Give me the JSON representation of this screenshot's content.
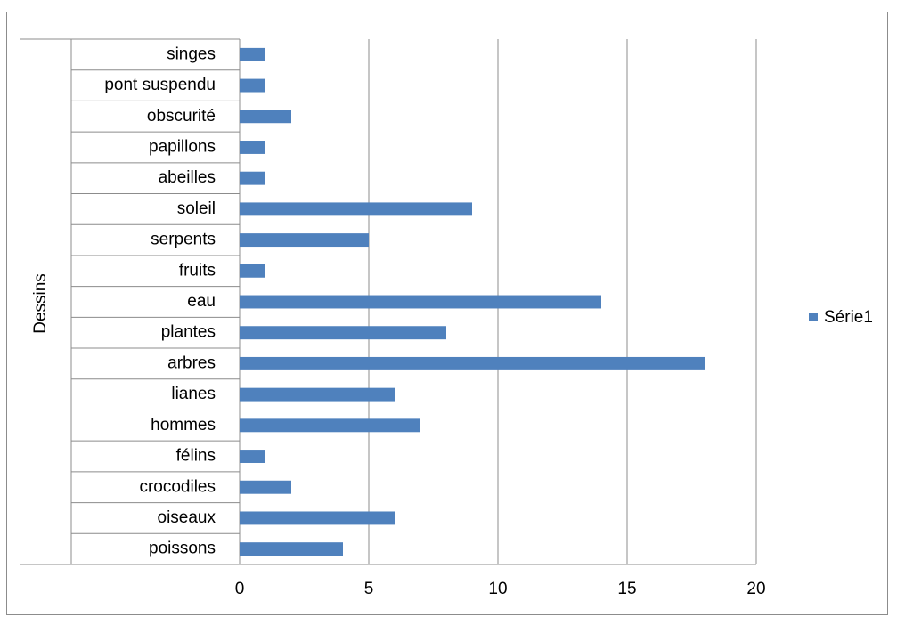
{
  "chart_data": {
    "type": "bar",
    "orientation": "horizontal",
    "title": "",
    "xlabel": "",
    "ylabel": "Dessins",
    "categories": [
      "poissons",
      "oiseaux",
      "crocodiles",
      "félins",
      "hommes",
      "lianes",
      "arbres",
      "plantes",
      "eau",
      "fruits",
      "serpents",
      "soleil",
      "abeilles",
      "papillons",
      "obscurité",
      "pont suspendu",
      "singes"
    ],
    "series": [
      {
        "name": "Série1",
        "values": [
          4,
          6,
          2,
          1,
          7,
          6,
          18,
          8,
          14,
          1,
          5,
          9,
          1,
          1,
          2,
          1,
          1
        ],
        "color": "#4f81bd"
      }
    ],
    "xlim": [
      0,
      20
    ],
    "xticks": [
      0,
      5,
      10,
      15,
      20
    ],
    "grid": "vertical major gridlines",
    "legend": "right"
  }
}
